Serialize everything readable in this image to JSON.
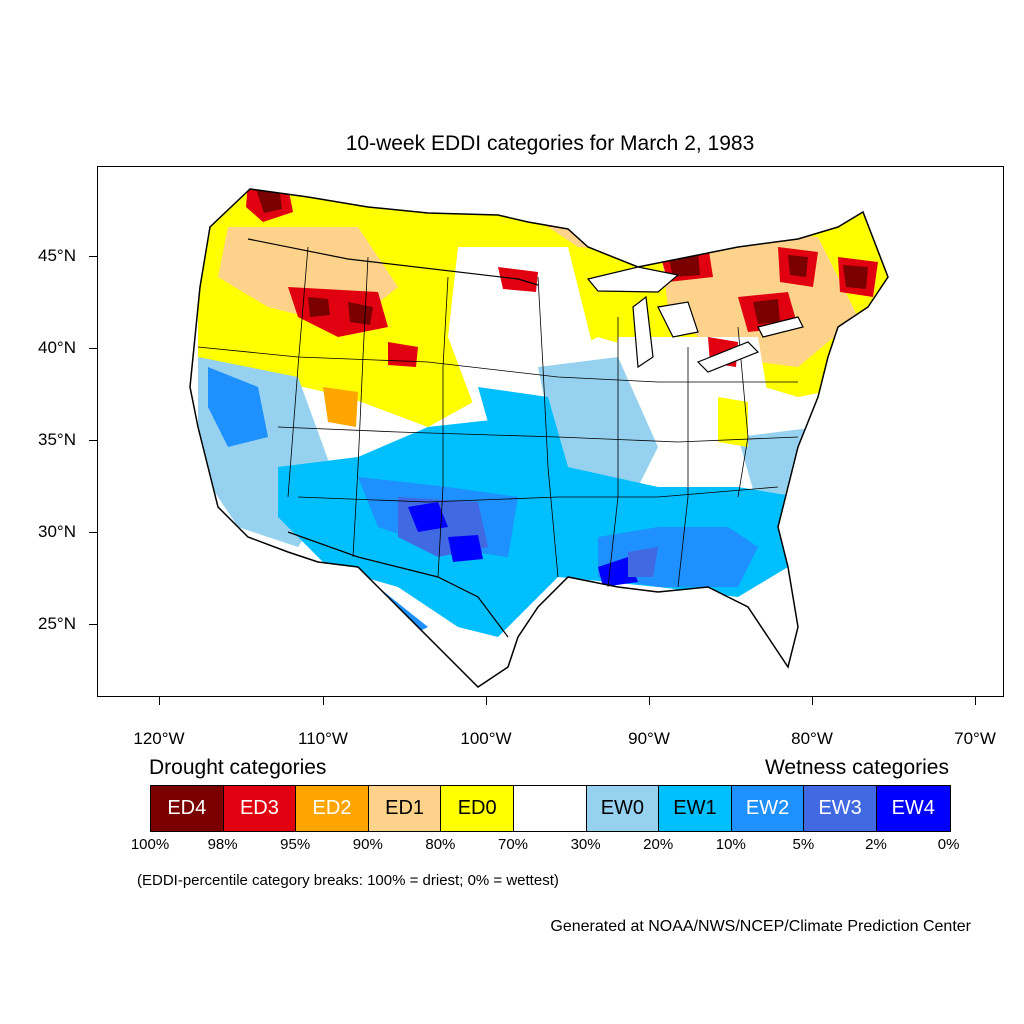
{
  "title": "10-week EDDI categories for March 2, 1983",
  "axes": {
    "lat_labels": [
      "45°N",
      "40°N",
      "35°N",
      "30°N",
      "25°N"
    ],
    "lon_labels": [
      "120°W",
      "110°W",
      "100°W",
      "90°W",
      "80°W",
      "70°W"
    ]
  },
  "legend": {
    "drought_title": "Drought categories",
    "wetness_title": "Wetness categories",
    "categories": [
      {
        "label": "ED4",
        "color": "#7a0000",
        "text_color": "#ffffff"
      },
      {
        "label": "ED3",
        "color": "#e0000f",
        "text_color": "#ffffff"
      },
      {
        "label": "ED2",
        "color": "#ffa500",
        "text_color": "#ffffff"
      },
      {
        "label": "ED1",
        "color": "#fdd28a",
        "text_color": "#000000"
      },
      {
        "label": "ED0",
        "color": "#ffff00",
        "text_color": "#000000"
      },
      {
        "label": "",
        "color": "#ffffff",
        "text_color": "#000000"
      },
      {
        "label": "EW0",
        "color": "#96d2f0",
        "text_color": "#000000"
      },
      {
        "label": "EW1",
        "color": "#00bfff",
        "text_color": "#000000"
      },
      {
        "label": "EW2",
        "color": "#1e90ff",
        "text_color": "#ffffff"
      },
      {
        "label": "EW3",
        "color": "#4169e1",
        "text_color": "#ffffff"
      },
      {
        "label": "EW4",
        "color": "#0000ff",
        "text_color": "#ffffff"
      }
    ],
    "breaks": [
      "100%",
      "98%",
      "95%",
      "90%",
      "80%",
      "70%",
      "30%",
      "20%",
      "10%",
      "5%",
      "2%",
      "0%"
    ],
    "note": "(EDDI-percentile category breaks: 100% = driest; 0% = wettest)"
  },
  "credit": "Generated at NOAA/NWS/NCEP/Climate Prediction Center"
}
